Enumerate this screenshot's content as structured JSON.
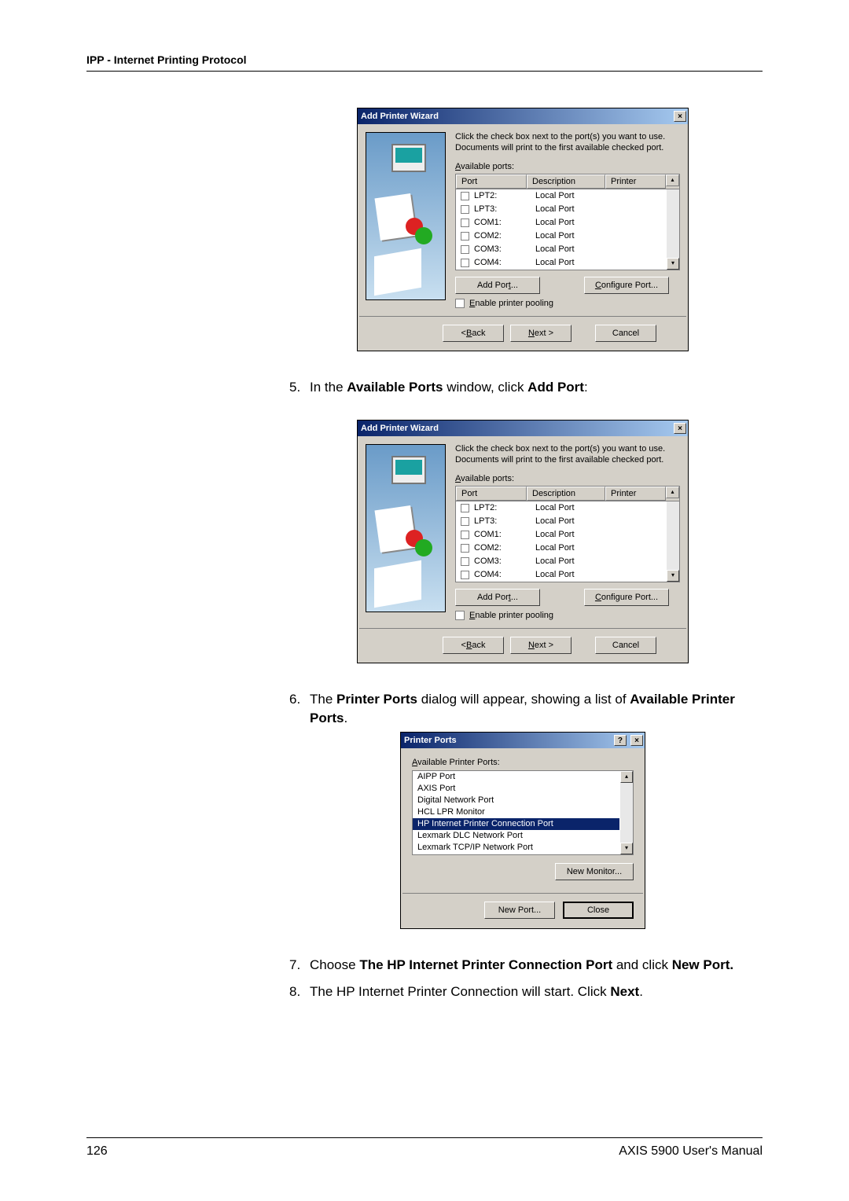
{
  "header": "IPP - Internet Printing Protocol",
  "wizard": {
    "title": "Add Printer Wizard",
    "instruction": "Click the check box next to the port(s) you want to use. Documents will print to the first available checked port.",
    "available_label": "Available ports:",
    "columns": {
      "port": "Port",
      "description": "Description",
      "printer": "Printer"
    },
    "rows": [
      {
        "port": "LPT2:",
        "desc": "Local Port"
      },
      {
        "port": "LPT3:",
        "desc": "Local Port"
      },
      {
        "port": "COM1:",
        "desc": "Local Port"
      },
      {
        "port": "COM2:",
        "desc": "Local Port"
      },
      {
        "port": "COM3:",
        "desc": "Local Port"
      },
      {
        "port": "COM4:",
        "desc": "Local Port"
      }
    ],
    "add_port_btn": "Add Port...",
    "configure_btn": "Configure Port...",
    "pool_label": "Enable printer pooling",
    "back_btn": "< Back",
    "next_btn": "Next >",
    "cancel_btn": "Cancel"
  },
  "steps": {
    "s5_num": "5.",
    "s5": "In the ",
    "s5_b1": "Available Ports",
    "s5_mid": " window, click ",
    "s5_b2": "Add Port",
    "s5_end": ":",
    "s6_num": "6.",
    "s6": "The ",
    "s6_b1": "Printer Ports",
    "s6_mid": " dialog will appear, showing a list of ",
    "s6_b2": "Available Printer Ports",
    "s6_end": ".",
    "s7_num": "7.",
    "s7": "Choose ",
    "s7_b1": "The HP Internet Printer Connection Port",
    "s7_mid": " and click ",
    "s7_b2": "New Port.",
    "s8_num": "8.",
    "s8": "The HP Internet Printer Connection will start. Click ",
    "s8_b1": "Next",
    "s8_end": "."
  },
  "printer_ports": {
    "title": "Printer Ports",
    "available_label": "Available Printer Ports:",
    "items": [
      "AIPP Port",
      "AXIS Port",
      "Digital Network Port",
      "HCL LPR Monitor",
      "HP Internet Printer Connection Port",
      "Lexmark DLC Network Port",
      "Lexmark TCP/IP Network Port"
    ],
    "selected_index": 4,
    "new_monitor_btn": "New Monitor...",
    "new_port_btn": "New Port...",
    "close_btn": "Close"
  },
  "footer": {
    "page": "126",
    "manual": "AXIS 5900 User's Manual"
  },
  "colors": {
    "page_bg": "#ffffff",
    "win_bg": "#d4d0c8",
    "title_grad_from": "#0a246a",
    "title_grad_to": "#a6caf0",
    "sel_bg": "#0a246a",
    "sel_fg": "#ffffff",
    "border_dark": "#404040",
    "border_mid": "#808080",
    "border_light": "#ffffff"
  }
}
